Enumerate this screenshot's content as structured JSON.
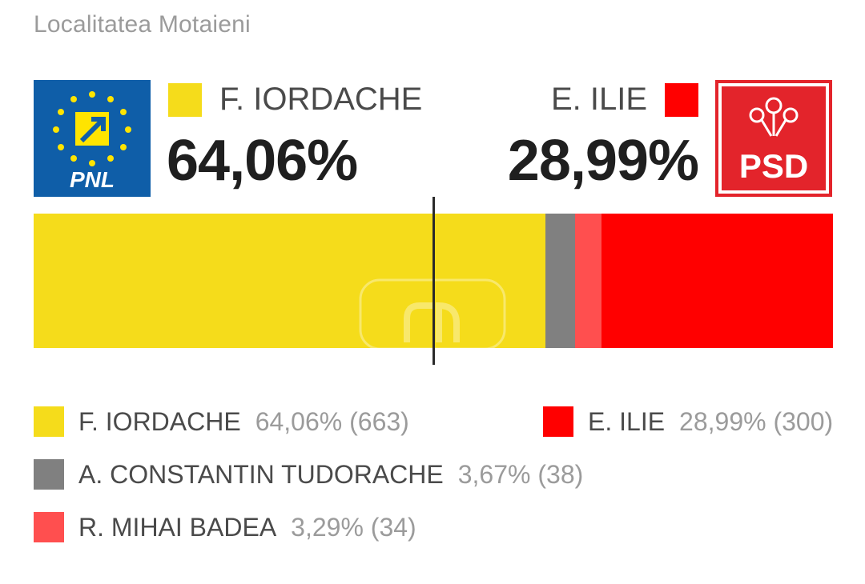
{
  "locality": "Localitatea Motaieni",
  "header": {
    "left": {
      "name": "F. IORDACHE",
      "pct": "64,06%",
      "party": "PNL",
      "logo_icon": "pnl-logo-icon",
      "color": "#f5dc1b"
    },
    "right": {
      "name": "E. ILIE",
      "pct": "28,99%",
      "party": "PSD",
      "logo_icon": "psd-logo-icon",
      "color": "#ff0000"
    }
  },
  "chart_data": {
    "type": "bar",
    "orientation": "horizontal-stacked",
    "series": [
      {
        "name": "F. IORDACHE",
        "percent": 64.06,
        "votes": 663,
        "color": "#f5dc1b"
      },
      {
        "name": "A. CONSTANTIN TUDORACHE",
        "percent": 3.67,
        "votes": 38,
        "color": "#808080"
      },
      {
        "name": "R. MIHAI BADEA",
        "percent": 3.29,
        "votes": 34,
        "color": "#ff4f4f"
      },
      {
        "name": "E. ILIE",
        "percent": 28.99,
        "votes": 300,
        "color": "#ff0000"
      }
    ],
    "reference_line_percent": 50
  },
  "legend": [
    {
      "name": "F. IORDACHE",
      "value": "64,06% (663)",
      "color": "#f5dc1b"
    },
    {
      "name": "E. ILIE",
      "value": "28,99% (300)",
      "color": "#ff0000"
    },
    {
      "name": "A. CONSTANTIN TUDORACHE",
      "value": "3,67% (38)",
      "color": "#808080"
    },
    {
      "name": "R. MIHAI BADEA",
      "value": "3,29% (34)",
      "color": "#ff4f4f"
    }
  ]
}
